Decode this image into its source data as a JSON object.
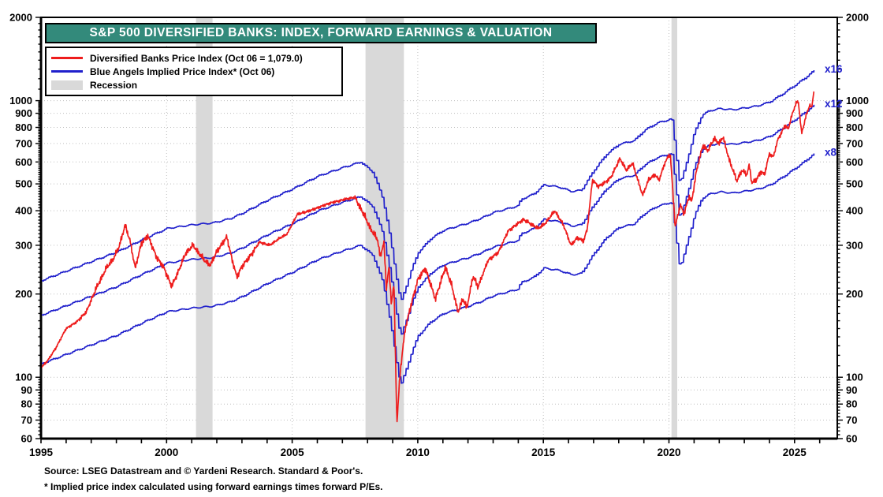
{
  "header": {
    "title": "S&P 500 DIVERSIFIED BANKS: INDEX, FORWARD EARNINGS & VALUATION"
  },
  "legend": {
    "items": [
      {
        "label": "Diversified Banks Price Index (Oct 06 = 1,079.0)",
        "color": "#ee1c1c",
        "swatch": "line"
      },
      {
        "label": "Blue Angels Implied Price Index* (Oct 06)",
        "color": "#2020cc",
        "swatch": "line"
      },
      {
        "label": "Recession",
        "color": "#d9d9d9",
        "swatch": "box"
      }
    ]
  },
  "footer": {
    "source": "Source: LSEG Datastream and © Yardeni Research. Standard & Poor's.",
    "note": "* Implied price index calculated using forward earnings times forward P/Es."
  },
  "colors": {
    "title_bg": "#338a7b",
    "price_line": "#ee1c1c",
    "blue_angels_line": "#2020cc",
    "recession_band": "#d9d9d9",
    "gridline": "#bfbfbf",
    "axis": "#000000"
  },
  "chart_data": {
    "type": "line",
    "title": "S&P 500 DIVERSIFIED BANKS: INDEX, FORWARD EARNINGS & VALUATION",
    "x_axis": {
      "range": [
        1995,
        2026.7
      ],
      "data_end": 2025.77,
      "tick_step": 1,
      "label_years": [
        1995,
        2000,
        2005,
        2010,
        2015,
        2020,
        2025
      ]
    },
    "y_axis": {
      "scale": "log",
      "range": [
        60,
        2000
      ],
      "major_ticks": [
        60,
        70,
        80,
        90,
        100,
        200,
        300,
        400,
        500,
        600,
        700,
        800,
        900,
        1000,
        2000
      ],
      "minor_ticks": [
        62,
        64,
        66,
        68,
        72,
        74,
        76,
        78,
        82,
        84,
        86,
        88,
        92,
        94,
        96,
        98,
        110,
        120,
        130,
        140,
        150,
        160,
        170,
        180,
        190,
        210,
        220,
        230,
        240,
        250,
        260,
        270,
        280,
        290,
        310,
        320,
        330,
        340,
        350,
        360,
        370,
        380,
        390,
        410,
        420,
        430,
        440,
        450,
        460,
        470,
        480,
        490,
        510,
        520,
        530,
        540,
        550,
        560,
        570,
        580,
        590,
        610,
        620,
        630,
        640,
        650,
        660,
        670,
        680,
        690,
        710,
        720,
        730,
        740,
        750,
        760,
        770,
        780,
        790,
        810,
        820,
        830,
        840,
        850,
        860,
        870,
        880,
        890,
        910,
        920,
        930,
        940,
        950,
        960,
        970,
        980,
        990,
        1100,
        1200,
        1300,
        1400,
        1500,
        1600,
        1700,
        1800,
        1900
      ],
      "grid_on": true
    },
    "recessions": [
      [
        2001.17,
        2001.83
      ],
      [
        2007.92,
        2009.45
      ],
      [
        2020.1,
        2020.33
      ]
    ],
    "series": [
      {
        "id": "price",
        "name": "Diversified Banks Price Index",
        "color": "#ee1c1c",
        "last_value": 1079.0,
        "keypoints": [
          [
            1995.0,
            108
          ],
          [
            1995.3,
            116
          ],
          [
            1995.6,
            128
          ],
          [
            1996.0,
            150
          ],
          [
            1996.4,
            158
          ],
          [
            1996.8,
            172
          ],
          [
            1997.2,
            210
          ],
          [
            1997.6,
            248
          ],
          [
            1997.9,
            270
          ],
          [
            1998.1,
            295
          ],
          [
            1998.35,
            355
          ],
          [
            1998.55,
            310
          ],
          [
            1998.75,
            248
          ],
          [
            1999.0,
            305
          ],
          [
            1999.25,
            325
          ],
          [
            1999.6,
            272
          ],
          [
            1999.9,
            248
          ],
          [
            2000.2,
            213
          ],
          [
            2000.5,
            245
          ],
          [
            2000.75,
            280
          ],
          [
            2001.05,
            300
          ],
          [
            2001.3,
            280
          ],
          [
            2001.55,
            262
          ],
          [
            2001.75,
            255
          ],
          [
            2002.0,
            285
          ],
          [
            2002.4,
            322
          ],
          [
            2002.6,
            268
          ],
          [
            2002.8,
            230
          ],
          [
            2003.0,
            252
          ],
          [
            2003.3,
            272
          ],
          [
            2003.7,
            308
          ],
          [
            2004.1,
            300
          ],
          [
            2004.5,
            318
          ],
          [
            2004.8,
            330
          ],
          [
            2005.2,
            388
          ],
          [
            2005.7,
            400
          ],
          [
            2006.5,
            426
          ],
          [
            2007.2,
            442
          ],
          [
            2007.5,
            447
          ],
          [
            2007.9,
            380
          ],
          [
            2008.1,
            347
          ],
          [
            2008.4,
            315
          ],
          [
            2008.5,
            272
          ],
          [
            2008.65,
            308
          ],
          [
            2008.75,
            210
          ],
          [
            2008.85,
            250
          ],
          [
            2008.95,
            185
          ],
          [
            2009.05,
            218
          ],
          [
            2009.17,
            68
          ],
          [
            2009.3,
            105
          ],
          [
            2009.5,
            150
          ],
          [
            2009.75,
            185
          ],
          [
            2010.0,
            225
          ],
          [
            2010.3,
            248
          ],
          [
            2010.7,
            192
          ],
          [
            2011.1,
            250
          ],
          [
            2011.35,
            215
          ],
          [
            2011.6,
            172
          ],
          [
            2011.8,
            192
          ],
          [
            2011.95,
            178
          ],
          [
            2012.2,
            232
          ],
          [
            2012.4,
            212
          ],
          [
            2012.8,
            265
          ],
          [
            2013.2,
            282
          ],
          [
            2013.6,
            338
          ],
          [
            2014.2,
            372
          ],
          [
            2014.8,
            345
          ],
          [
            2015.1,
            362
          ],
          [
            2015.45,
            400
          ],
          [
            2015.8,
            355
          ],
          [
            2016.1,
            300
          ],
          [
            2016.35,
            320
          ],
          [
            2016.6,
            310
          ],
          [
            2016.75,
            345
          ],
          [
            2016.95,
            515
          ],
          [
            2017.2,
            490
          ],
          [
            2017.45,
            505
          ],
          [
            2017.7,
            530
          ],
          [
            2018.05,
            618
          ],
          [
            2018.3,
            560
          ],
          [
            2018.55,
            595
          ],
          [
            2018.75,
            520
          ],
          [
            2018.95,
            455
          ],
          [
            2019.2,
            520
          ],
          [
            2019.45,
            540
          ],
          [
            2019.6,
            515
          ],
          [
            2019.85,
            600
          ],
          [
            2020.05,
            644
          ],
          [
            2020.25,
            350
          ],
          [
            2020.45,
            420
          ],
          [
            2020.6,
            390
          ],
          [
            2020.8,
            450
          ],
          [
            2020.9,
            430
          ],
          [
            2021.1,
            560
          ],
          [
            2021.35,
            690
          ],
          [
            2021.55,
            660
          ],
          [
            2021.8,
            730
          ],
          [
            2022.0,
            700
          ],
          [
            2022.15,
            740
          ],
          [
            2022.4,
            610
          ],
          [
            2022.55,
            560
          ],
          [
            2022.7,
            512
          ],
          [
            2022.9,
            560
          ],
          [
            2023.1,
            540
          ],
          [
            2023.2,
            585
          ],
          [
            2023.3,
            502
          ],
          [
            2023.5,
            520
          ],
          [
            2023.65,
            555
          ],
          [
            2023.8,
            540
          ],
          [
            2024.0,
            644
          ],
          [
            2024.15,
            625
          ],
          [
            2024.35,
            730
          ],
          [
            2024.5,
            770
          ],
          [
            2024.6,
            812
          ],
          [
            2024.75,
            790
          ],
          [
            2024.9,
            890
          ],
          [
            2025.05,
            975
          ],
          [
            2025.15,
            995
          ],
          [
            2025.28,
            760
          ],
          [
            2025.45,
            875
          ],
          [
            2025.6,
            965
          ],
          [
            2025.68,
            940
          ],
          [
            2025.77,
            1079
          ]
        ]
      },
      {
        "id": "blue_angels_x12",
        "name": "Blue Angels Implied Price Index (12 x forward earnings)",
        "color": "#2020cc",
        "keypoints": [
          [
            1995.0,
            168
          ],
          [
            1996.0,
            182
          ],
          [
            1997.0,
            197
          ],
          [
            1998.0,
            213
          ],
          [
            1999.0,
            236
          ],
          [
            2000.0,
            259
          ],
          [
            2001.0,
            267
          ],
          [
            2001.8,
            271
          ],
          [
            2002.5,
            281
          ],
          [
            2003.0,
            294
          ],
          [
            2004.0,
            328
          ],
          [
            2005.0,
            360
          ],
          [
            2006.0,
            400
          ],
          [
            2007.0,
            430
          ],
          [
            2007.7,
            450
          ],
          [
            2008.2,
            413
          ],
          [
            2008.6,
            330
          ],
          [
            2008.9,
            235
          ],
          [
            2009.15,
            168
          ],
          [
            2009.3,
            140
          ],
          [
            2009.5,
            158
          ],
          [
            2009.75,
            186
          ],
          [
            2010.0,
            212
          ],
          [
            2010.5,
            238
          ],
          [
            2011.0,
            255
          ],
          [
            2011.5,
            263
          ],
          [
            2012.0,
            271
          ],
          [
            2012.5,
            282
          ],
          [
            2013.0,
            296
          ],
          [
            2013.95,
            312
          ],
          [
            2014.1,
            330
          ],
          [
            2014.6,
            345
          ],
          [
            2015.0,
            372
          ],
          [
            2015.6,
            365
          ],
          [
            2016.1,
            352
          ],
          [
            2016.5,
            356
          ],
          [
            2017.0,
            420
          ],
          [
            2017.5,
            480
          ],
          [
            2018.0,
            522
          ],
          [
            2018.6,
            538
          ],
          [
            2019.0,
            585
          ],
          [
            2019.5,
            622
          ],
          [
            2020.1,
            645
          ],
          [
            2020.25,
            500
          ],
          [
            2020.42,
            372
          ],
          [
            2020.6,
            420
          ],
          [
            2020.85,
            510
          ],
          [
            2021.0,
            575
          ],
          [
            2021.3,
            665
          ],
          [
            2021.6,
            690
          ],
          [
            2022.0,
            702
          ],
          [
            2022.5,
            695
          ],
          [
            2023.0,
            706
          ],
          [
            2023.5,
            718
          ],
          [
            2024.0,
            742
          ],
          [
            2024.5,
            792
          ],
          [
            2025.0,
            852
          ],
          [
            2025.4,
            905
          ],
          [
            2025.77,
            966
          ]
        ],
        "multipliers": [
          {
            "label": "x16",
            "factor": 1.33333,
            "end_value": 1288
          },
          {
            "label": "x12",
            "factor": 1.0,
            "end_value": 966
          },
          {
            "label": "x8",
            "factor": 0.66667,
            "end_value": 644
          }
        ]
      }
    ]
  }
}
